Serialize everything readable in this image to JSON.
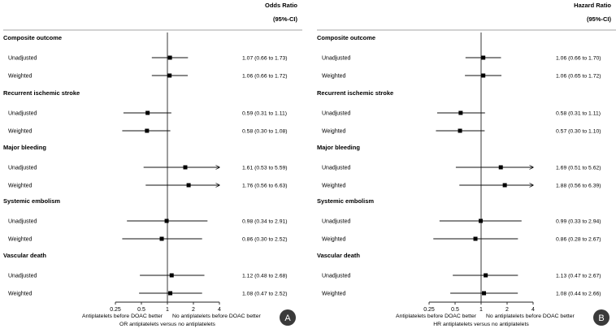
{
  "chart_data": [
    {
      "type": "forest",
      "panel_label": "A",
      "title": "Odds Ratio",
      "ci_header": "(95%-CI)",
      "xscale": "log2",
      "xlim": [
        0.25,
        4
      ],
      "xticks": [
        0.25,
        0.5,
        1,
        2,
        4
      ],
      "xtick_labels": [
        "0.25",
        "0.5",
        "1",
        "2",
        "4"
      ],
      "reference_line": 1,
      "left_direction_label": "Antiplatelets before DOAC better",
      "right_direction_label": "No antiplatelets before DOAC better",
      "xlabel": "OR antiplatelets versus no antiplatelets",
      "sections": [
        {
          "title": "Composite outcome",
          "rows": [
            {
              "label": "Unadjusted",
              "est": 1.07,
              "lo": 0.66,
              "hi": 1.73,
              "text": "1.07 (0.66 to 1.73)"
            },
            {
              "label": "Weighted",
              "est": 1.06,
              "lo": 0.66,
              "hi": 1.72,
              "text": "1.06 (0.66 to 1.72)"
            }
          ]
        },
        {
          "title": "Recurrent ischemic stroke",
          "rows": [
            {
              "label": "Unadjusted",
              "est": 0.59,
              "lo": 0.31,
              "hi": 1.11,
              "text": "0.59 (0.31 to 1.11)"
            },
            {
              "label": "Weighted",
              "est": 0.58,
              "lo": 0.3,
              "hi": 1.08,
              "text": "0.58 (0.30 to 1.08)"
            }
          ]
        },
        {
          "title": "Major bleeding",
          "rows": [
            {
              "label": "Unadjusted",
              "est": 1.61,
              "lo": 0.53,
              "hi": 5.59,
              "text": "1.61 (0.53 to 5.59)"
            },
            {
              "label": "Weighted",
              "est": 1.76,
              "lo": 0.56,
              "hi": 6.63,
              "text": "1.76 (0.56 to 6.63)"
            }
          ]
        },
        {
          "title": "Systemic embolism",
          "rows": [
            {
              "label": "Unadjusted",
              "est": 0.98,
              "lo": 0.34,
              "hi": 2.91,
              "text": "0.98 (0.34 to 2.91)"
            },
            {
              "label": "Weighted",
              "est": 0.86,
              "lo": 0.3,
              "hi": 2.52,
              "text": "0.86 (0.30 to 2.52)"
            }
          ]
        },
        {
          "title": "Vascular death",
          "rows": [
            {
              "label": "Unadjusted",
              "est": 1.12,
              "lo": 0.48,
              "hi": 2.68,
              "text": "1.12 (0.48 to 2.68)"
            },
            {
              "label": "Weighted",
              "est": 1.08,
              "lo": 0.47,
              "hi": 2.52,
              "text": "1.08 (0.47 to 2.52)"
            }
          ]
        }
      ]
    },
    {
      "type": "forest",
      "panel_label": "B",
      "title": "Hazard Ratio",
      "ci_header": "(95%-CI)",
      "xscale": "log2",
      "xlim": [
        0.25,
        4
      ],
      "xticks": [
        0.25,
        0.5,
        1,
        2,
        4
      ],
      "xtick_labels": [
        "0.25",
        "0.5",
        "1",
        "2",
        "4"
      ],
      "reference_line": 1,
      "left_direction_label": "Antiplatelets before DOAC better",
      "right_direction_label": "No antiplatelets before DOAC better",
      "xlabel": "HR antiplatelets versus no antiplatelets",
      "sections": [
        {
          "title": "Composite outcome",
          "rows": [
            {
              "label": "Unadjusted",
              "est": 1.06,
              "lo": 0.66,
              "hi": 1.7,
              "text": "1.06 (0.66 to 1.70)"
            },
            {
              "label": "Weighted",
              "est": 1.06,
              "lo": 0.65,
              "hi": 1.72,
              "text": "1.06 (0.65 to 1.72)"
            }
          ]
        },
        {
          "title": "Recurrent ischemic stroke",
          "rows": [
            {
              "label": "Unadjusted",
              "est": 0.58,
              "lo": 0.31,
              "hi": 1.11,
              "text": "0.58 (0.31 to 1.11)"
            },
            {
              "label": "Weighted",
              "est": 0.57,
              "lo": 0.3,
              "hi": 1.1,
              "text": "0.57 (0.30 to 1.10)"
            }
          ]
        },
        {
          "title": "Major bleeding",
          "rows": [
            {
              "label": "Unadjusted",
              "est": 1.69,
              "lo": 0.51,
              "hi": 5.62,
              "text": "1.69 (0.51 to 5.62)"
            },
            {
              "label": "Weighted",
              "est": 1.88,
              "lo": 0.56,
              "hi": 6.39,
              "text": "1.88 (0.56 to 6.39)"
            }
          ]
        },
        {
          "title": "Systemic embolism",
          "rows": [
            {
              "label": "Unadjusted",
              "est": 0.99,
              "lo": 0.33,
              "hi": 2.94,
              "text": "0.99 (0.33 to 2.94)"
            },
            {
              "label": "Weighted",
              "est": 0.86,
              "lo": 0.28,
              "hi": 2.67,
              "text": "0.86 (0.28 to 2.67)"
            }
          ]
        },
        {
          "title": "Vascular death",
          "rows": [
            {
              "label": "Unadjusted",
              "est": 1.13,
              "lo": 0.47,
              "hi": 2.67,
              "text": "1.13 (0.47 to 2.67)"
            },
            {
              "label": "Weighted",
              "est": 1.08,
              "lo": 0.44,
              "hi": 2.66,
              "text": "1.08 (0.44 to 2.66)"
            }
          ]
        }
      ]
    }
  ]
}
